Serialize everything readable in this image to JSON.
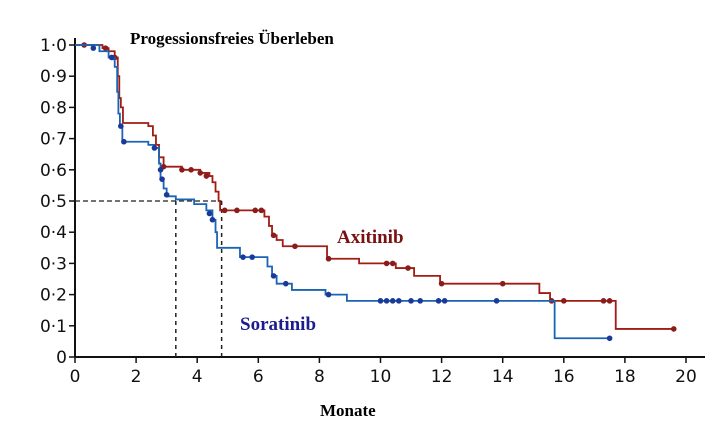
{
  "chart_data": {
    "type": "line",
    "title": "Progessionsfreies Überleben",
    "xlabel": "Monate",
    "ylabel": "",
    "xlim": [
      0,
      20
    ],
    "ylim": [
      0,
      1.0
    ],
    "xticks": [
      0,
      2,
      4,
      6,
      8,
      10,
      12,
      14,
      16,
      18,
      20
    ],
    "xtick_labels": [
      "0",
      "2",
      "4",
      "6",
      "8",
      "10",
      "12",
      "14",
      "16",
      "18",
      "20"
    ],
    "yticks": [
      0,
      0.1,
      0.2,
      0.3,
      0.4,
      0.5,
      0.6,
      0.7,
      0.8,
      0.9,
      1.0
    ],
    "ytick_labels": [
      "0",
      "0·1",
      "0·2",
      "0·3",
      "0·4",
      "0·5",
      "0·6",
      "0·7",
      "0·8",
      "0·9",
      "1·0"
    ],
    "grid": false,
    "series": [
      {
        "name": "Axitinib",
        "color": "#a01c14",
        "label_color": "#7a1010",
        "steps": [
          [
            0,
            1.0
          ],
          [
            0.9,
            0.99
          ],
          [
            1.1,
            0.98
          ],
          [
            1.3,
            0.96
          ],
          [
            1.4,
            0.9
          ],
          [
            1.45,
            0.83
          ],
          [
            1.5,
            0.8
          ],
          [
            1.57,
            0.75
          ],
          [
            2.4,
            0.74
          ],
          [
            2.55,
            0.71
          ],
          [
            2.65,
            0.68
          ],
          [
            2.75,
            0.64
          ],
          [
            2.9,
            0.61
          ],
          [
            3.5,
            0.6
          ],
          [
            4.1,
            0.59
          ],
          [
            4.4,
            0.58
          ],
          [
            4.5,
            0.56
          ],
          [
            4.6,
            0.53
          ],
          [
            4.7,
            0.5
          ],
          [
            4.75,
            0.47
          ],
          [
            6.2,
            0.45
          ],
          [
            6.35,
            0.42
          ],
          [
            6.45,
            0.39
          ],
          [
            6.6,
            0.375
          ],
          [
            6.8,
            0.355
          ],
          [
            8.25,
            0.315
          ],
          [
            9.3,
            0.3
          ],
          [
            10.5,
            0.285
          ],
          [
            11.1,
            0.26
          ],
          [
            11.95,
            0.235
          ],
          [
            15.2,
            0.205
          ],
          [
            15.55,
            0.18
          ],
          [
            17.7,
            0.09
          ],
          [
            19.6,
            0.09
          ]
        ],
        "censored": [
          [
            0.3,
            1.0
          ],
          [
            1.0,
            0.99
          ],
          [
            1.3,
            0.96
          ],
          [
            2.9,
            0.61
          ],
          [
            3.5,
            0.6
          ],
          [
            3.8,
            0.6
          ],
          [
            4.1,
            0.59
          ],
          [
            4.3,
            0.58
          ],
          [
            4.9,
            0.47
          ],
          [
            5.3,
            0.47
          ],
          [
            5.9,
            0.47
          ],
          [
            6.1,
            0.47
          ],
          [
            6.5,
            0.39
          ],
          [
            7.2,
            0.355
          ],
          [
            8.3,
            0.315
          ],
          [
            10.2,
            0.3
          ],
          [
            10.4,
            0.3
          ],
          [
            10.9,
            0.285
          ],
          [
            12.0,
            0.235
          ],
          [
            14.0,
            0.235
          ],
          [
            15.6,
            0.18
          ],
          [
            16.0,
            0.18
          ],
          [
            17.3,
            0.18
          ],
          [
            17.5,
            0.18
          ],
          [
            19.6,
            0.09
          ]
        ]
      },
      {
        "name": "Soratinib",
        "color": "#1a64b4",
        "label_color": "#1c1c8c",
        "steps": [
          [
            0,
            1.0
          ],
          [
            0.8,
            0.98
          ],
          [
            1.1,
            0.96
          ],
          [
            1.3,
            0.93
          ],
          [
            1.38,
            0.85
          ],
          [
            1.42,
            0.78
          ],
          [
            1.47,
            0.74
          ],
          [
            1.55,
            0.69
          ],
          [
            2.4,
            0.68
          ],
          [
            2.6,
            0.67
          ],
          [
            2.75,
            0.62
          ],
          [
            2.8,
            0.57
          ],
          [
            2.9,
            0.54
          ],
          [
            3.0,
            0.515
          ],
          [
            3.3,
            0.505
          ],
          [
            3.9,
            0.49
          ],
          [
            4.3,
            0.47
          ],
          [
            4.5,
            0.44
          ],
          [
            4.6,
            0.4
          ],
          [
            4.65,
            0.35
          ],
          [
            5.4,
            0.32
          ],
          [
            6.3,
            0.29
          ],
          [
            6.45,
            0.26
          ],
          [
            6.6,
            0.235
          ],
          [
            7.1,
            0.215
          ],
          [
            8.2,
            0.2
          ],
          [
            8.9,
            0.18
          ],
          [
            15.7,
            0.06
          ],
          [
            17.5,
            0.06
          ]
        ],
        "censored": [
          [
            0.6,
            0.99
          ],
          [
            1.2,
            0.96
          ],
          [
            1.5,
            0.74
          ],
          [
            1.6,
            0.69
          ],
          [
            2.6,
            0.67
          ],
          [
            2.8,
            0.6
          ],
          [
            2.85,
            0.57
          ],
          [
            3.0,
            0.52
          ],
          [
            4.4,
            0.46
          ],
          [
            4.5,
            0.44
          ],
          [
            5.5,
            0.32
          ],
          [
            5.8,
            0.32
          ],
          [
            6.5,
            0.26
          ],
          [
            6.9,
            0.235
          ],
          [
            8.3,
            0.2
          ],
          [
            10.0,
            0.18
          ],
          [
            10.2,
            0.18
          ],
          [
            10.4,
            0.18
          ],
          [
            10.6,
            0.18
          ],
          [
            11.0,
            0.18
          ],
          [
            11.3,
            0.18
          ],
          [
            11.9,
            0.18
          ],
          [
            12.1,
            0.18
          ],
          [
            13.8,
            0.18
          ],
          [
            17.5,
            0.06
          ]
        ]
      }
    ],
    "median_lines": {
      "y": 0.5,
      "x_values": [
        3.3,
        4.8
      ]
    },
    "annotations": [
      {
        "text": "Axitinib",
        "series": 0
      },
      {
        "text": "Soratinib",
        "series": 1
      }
    ]
  }
}
